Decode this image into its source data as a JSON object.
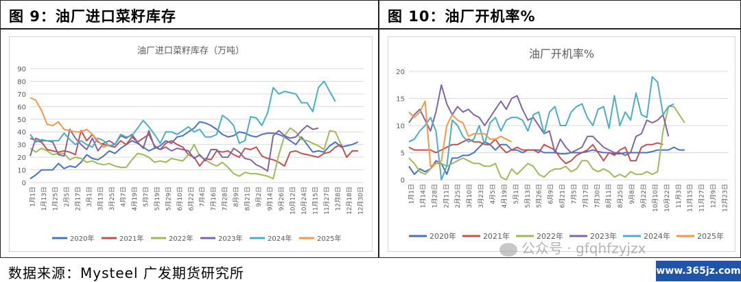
{
  "panels": [
    {
      "title": "图 9：油厂进口菜籽库存"
    },
    {
      "title": "图 10：油厂开机率%"
    }
  ],
  "footer": "数据来源：Mysteel 广发期货研究所",
  "watermark": "公众号 · gfqhfzyjzx",
  "site_badge": "www.365jz.com",
  "chart_data": [
    {
      "type": "line",
      "title": "油厂进口菜籽库存（万吨）",
      "ylim": [
        0,
        90
      ],
      "yticks": [
        0,
        10,
        20,
        30,
        40,
        50,
        60,
        70,
        80,
        90
      ],
      "x_tick_labels": [
        "1月1日",
        "1月13日",
        "1月25日",
        "2月5日",
        "2月17日",
        "3月1日",
        "3月13日",
        "3月25日",
        "4月7日",
        "4月19日",
        "5月7日",
        "5月19日",
        "5月29日",
        "6月10日",
        "6月22日",
        "7月4日",
        "7月16日",
        "7月28日",
        "8月9日",
        "8月21日",
        "9月2日",
        "9月14日",
        "9月26日",
        "10月12日",
        "10月24日",
        "11月15日",
        "11月27日",
        "12月8日",
        "12月18日",
        "12月30日"
      ],
      "legend_position": "bottom",
      "series": [
        {
          "name": "2020年",
          "color": "#4472c4",
          "values": [
            3,
            6,
            10,
            10,
            10,
            15,
            11,
            13,
            12,
            16,
            22,
            19,
            18,
            21,
            25,
            23,
            27,
            30,
            33,
            31,
            28,
            25,
            27,
            29,
            33,
            31,
            36,
            37,
            40,
            43,
            48,
            47,
            45,
            42,
            38,
            36,
            37,
            40,
            39,
            37,
            36,
            38,
            39,
            39,
            38,
            36,
            33,
            30,
            36,
            30,
            24,
            25,
            24,
            29,
            32,
            28,
            29,
            30,
            32
          ]
        },
        {
          "name": "2021年",
          "color": "#c0504d",
          "values": [
            35,
            33,
            32,
            26,
            25,
            24,
            25,
            24,
            22,
            41,
            33,
            38,
            32,
            30,
            29,
            28,
            33,
            30,
            36,
            32,
            35,
            38,
            29,
            26,
            31,
            33,
            30,
            28,
            22,
            20,
            13,
            19,
            18,
            25,
            24,
            25,
            22,
            20,
            27,
            26,
            28,
            21,
            19,
            18,
            16,
            13,
            24,
            25,
            23,
            22,
            21,
            20,
            23,
            24,
            28,
            30,
            20,
            25,
            25
          ]
        },
        {
          "name": "2022年",
          "color": "#9bbb59",
          "values": [
            27,
            24,
            27,
            25,
            22,
            23,
            23,
            18,
            20,
            19,
            16,
            17,
            15,
            14,
            15,
            13,
            12,
            12,
            18,
            23,
            22,
            20,
            16,
            17,
            16,
            19,
            18,
            17,
            22,
            30,
            21,
            18,
            15,
            13,
            16,
            12,
            7,
            5,
            8,
            7,
            7,
            6,
            5,
            3,
            22,
            37,
            43,
            40,
            34,
            33,
            31,
            29,
            26,
            41,
            40,
            30
          ]
        },
        {
          "name": "2023年",
          "color": "#8064a2",
          "values": [
            21,
            35,
            33,
            33,
            32,
            22,
            21,
            42,
            35,
            30,
            26,
            35,
            25,
            31,
            33,
            30,
            37,
            35,
            38,
            32,
            27,
            41,
            28,
            26,
            28,
            25,
            27,
            26,
            25,
            19,
            22,
            17,
            26,
            26,
            20,
            20,
            27,
            24,
            19,
            18,
            14,
            12,
            9,
            37,
            41,
            37,
            35,
            36,
            41,
            45,
            42,
            43
          ]
        },
        {
          "name": "2024年",
          "color": "#4bacc6",
          "values": [
            38,
            32,
            34,
            33,
            33,
            33,
            39,
            34,
            30,
            33,
            30,
            28,
            35,
            33,
            29,
            30,
            38,
            36,
            37,
            43,
            49,
            44,
            38,
            31,
            40,
            40,
            38,
            41,
            44,
            40,
            42,
            36,
            36,
            38,
            53,
            50,
            45,
            31,
            33,
            52,
            51,
            45,
            55,
            75,
            70,
            72,
            71,
            70,
            63,
            63,
            56,
            75,
            80,
            72,
            64
          ]
        },
        {
          "name": "2025年",
          "color": "#f79646",
          "values": [
            67,
            65,
            57,
            46,
            45,
            48,
            42,
            41,
            40,
            40,
            42,
            38,
            33,
            28,
            30
          ]
        }
      ]
    },
    {
      "type": "line",
      "title": "油厂开机率%",
      "ylim": [
        0,
        20
      ],
      "yticks": [
        0,
        5,
        10,
        15,
        20
      ],
      "x_tick_labels": [
        "1月1日",
        "1月14日",
        "1月28日",
        "2月11日",
        "2月25日",
        "3月10日",
        "3月23日",
        "4月5日",
        "4月19日",
        "5月1日",
        "5月13日",
        "5月26日",
        "6月9日",
        "6月21日",
        "7月5日",
        "7月17日",
        "7月30日",
        "8月11日",
        "8月25日",
        "9月8日",
        "9月22日",
        "10月10日",
        "10月22日",
        "11月3日",
        "11月15日",
        "11月27日",
        "12月9日",
        "12月23日"
      ],
      "legend_position": "bottom",
      "series": [
        {
          "name": "2020年",
          "color": "#4472c4",
          "values": [
            2.5,
            1.0,
            2.0,
            1.5,
            2.0,
            3.5,
            3.0,
            1.0,
            4.0,
            4.0,
            4.5,
            4.5,
            5.0,
            6.0,
            7.0,
            6.5,
            5.5,
            6.5,
            6.5,
            5.5,
            5.5,
            5.0,
            5.5,
            5.5,
            5.5,
            5.0,
            5.0,
            5.0,
            4.8,
            4.8,
            5.0,
            5.0,
            5.0,
            5.2,
            5.5,
            5.2,
            5.0,
            5.0,
            4.8,
            4.8,
            5.0,
            5.0,
            5.0,
            5.0,
            5.0,
            5.2,
            5.5,
            5.5,
            5.5,
            6.0,
            5.5,
            5.5
          ]
        },
        {
          "name": "2021年",
          "color": "#c0504d",
          "values": [
            6.0,
            5.5,
            5.5,
            5.5,
            5.5,
            5.0,
            5.5,
            6.0,
            6.5,
            6.5,
            7.0,
            7.5,
            7.0,
            7.0,
            6.5,
            6.5,
            7.5,
            6.0,
            5.0,
            5.5,
            6.0,
            5.5,
            5.5,
            5.5,
            5.0,
            6.5,
            6.0,
            5.5,
            4.0,
            3.0,
            3.5,
            4.5,
            5.0,
            5.5,
            6.5,
            5.0,
            3.5,
            5.0,
            4.5,
            5.5,
            6.0,
            3.5,
            3.5,
            6.0,
            6.5,
            6.5,
            6.8,
            6.5
          ]
        },
        {
          "name": "2022年",
          "color": "#9bbb59",
          "values": [
            4.0,
            3.0,
            1.5,
            1.0,
            2.0,
            3.0,
            3.0,
            2.5,
            3.0,
            3.5,
            4.0,
            3.5,
            3.0,
            3.0,
            2.5,
            2.5,
            3.0,
            0.5,
            0.0,
            2.0,
            1.0,
            2.0,
            3.0,
            2.5,
            1.0,
            0.5,
            1.5,
            2.0,
            2.0,
            2.5,
            1.5,
            2.0,
            3.5,
            3.5,
            2.0,
            1.5,
            2.0,
            1.5,
            0.5,
            1.0,
            0.5,
            1.5,
            1.0,
            1.0,
            1.5,
            1.0,
            1.5,
            9.0,
            13.5,
            13.5,
            12.0,
            10.5
          ]
        },
        {
          "name": "2023年",
          "color": "#8064a2",
          "values": [
            10.5,
            12.0,
            13.0,
            11.0,
            9.0,
            12.5,
            17.5,
            14.0,
            12.0,
            13.5,
            12.5,
            13.0,
            12.0,
            11.5,
            10.0,
            11.5,
            13.0,
            14.5,
            13.0,
            15.0,
            15.5,
            13.0,
            11.0,
            11.5,
            10.0,
            8.5,
            9.0,
            5.0,
            7.5,
            6.0,
            5.0,
            5.5,
            6.0,
            8.0,
            8.0,
            7.0,
            6.0,
            5.5,
            5.0,
            5.0,
            4.5,
            5.0,
            8.0,
            8.5,
            11.0,
            10.5,
            11.0,
            12.0,
            8.0
          ]
        },
        {
          "name": "2024年",
          "color": "#4bacc6",
          "values": [
            7.0,
            7.5,
            9.0,
            10.0,
            11.5,
            9.0,
            0.0,
            2.5,
            11.0,
            10.0,
            8.0,
            7.0,
            7.5,
            10.0,
            6.5,
            10.5,
            11.5,
            9.0,
            11.0,
            11.5,
            11.5,
            11.0,
            9.0,
            12.0,
            12.5,
            8.5,
            12.5,
            13.5,
            10.0,
            10.0,
            12.5,
            13.5,
            14.0,
            11.5,
            10.0,
            13.0,
            13.5,
            9.5,
            15.5,
            10.0,
            12.5,
            11.0,
            16.0,
            12.0,
            11.5,
            19.0,
            18.0,
            12.0,
            13.5,
            14.0
          ]
        },
        {
          "name": "2025年",
          "color": "#f79646",
          "values": [
            12.5,
            11.5,
            12.5,
            14.5,
            2.5,
            3.0,
            3.5,
            10.0,
            12.0,
            11.0,
            10.5,
            8.0,
            8.5,
            8.5,
            8.5,
            7.5,
            7.5,
            8.0,
            7.5,
            7.0
          ]
        }
      ]
    }
  ]
}
